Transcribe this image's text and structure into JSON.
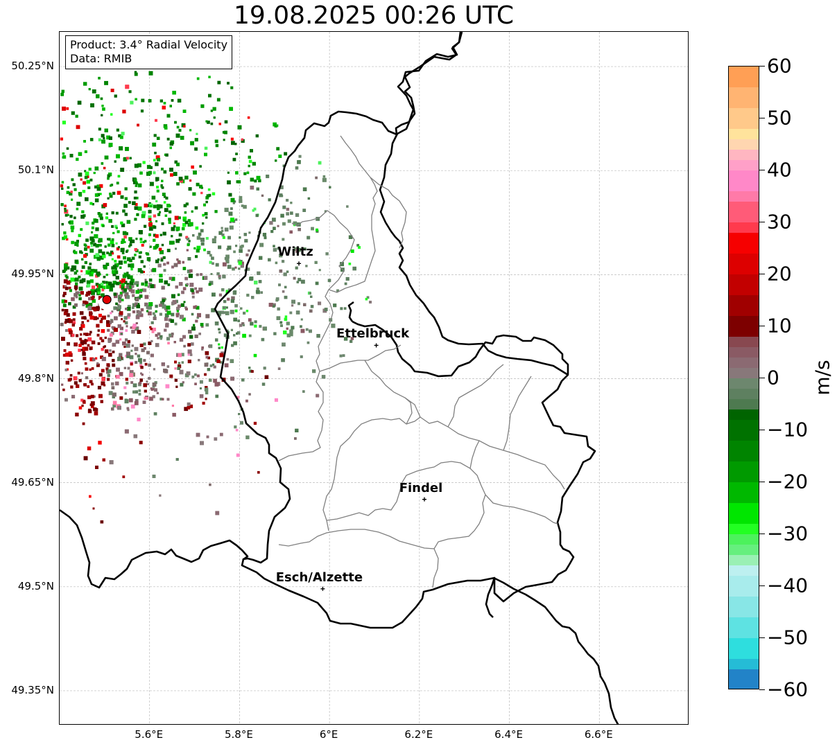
{
  "title": "19.08.2025 00:26 UTC",
  "info_box": {
    "product": "Product: 3.4° Radial Velocity",
    "data": "Data: RMIB"
  },
  "axes": {
    "lat_labels": [
      "50.25°N",
      "50.1°N",
      "49.95°N",
      "49.8°N",
      "49.65°N",
      "49.5°N",
      "49.35°N"
    ],
    "lat_values": [
      50.25,
      50.1,
      49.95,
      49.8,
      49.65,
      49.5,
      49.35
    ],
    "lon_labels": [
      "5.6°E",
      "5.8°E",
      "6°E",
      "6.2°E",
      "6.4°E",
      "6.6°E"
    ],
    "lon_values": [
      5.6,
      5.8,
      6.0,
      6.2,
      6.4,
      6.6
    ],
    "lon_range": [
      5.4,
      6.8
    ],
    "lat_range": [
      49.3,
      50.3
    ],
    "gridlines": true
  },
  "cities": [
    {
      "name": "Wiltz",
      "lon": 5.932,
      "lat": 49.966
    },
    {
      "name": "Ettelbruck",
      "lon": 6.104,
      "lat": 49.848
    },
    {
      "name": "Findel",
      "lon": 6.211,
      "lat": 49.626
    },
    {
      "name": "Esch/Alzette",
      "lon": 5.985,
      "lat": 49.497
    }
  ],
  "radar_site": {
    "lon": 5.505,
    "lat": 49.914,
    "color": "#e00000"
  },
  "colorbar": {
    "unit": "m/s",
    "min": -60,
    "max": 60,
    "ticks": [
      60,
      50,
      40,
      30,
      20,
      10,
      0,
      -10,
      -20,
      -30,
      -40,
      -50,
      -60
    ],
    "tick_labels": [
      "60",
      "50",
      "40",
      "30",
      "20",
      "10",
      "0",
      "−10",
      "−20",
      "−30",
      "−40",
      "−50",
      "−60"
    ],
    "segments": [
      {
        "from": 56,
        "to": 60,
        "color": "#ff9f55"
      },
      {
        "from": 52,
        "to": 56,
        "color": "#ffb472"
      },
      {
        "from": 48,
        "to": 52,
        "color": "#ffc98a"
      },
      {
        "from": 46,
        "to": 48,
        "color": "#ffe39c"
      },
      {
        "from": 44,
        "to": 46,
        "color": "#ffd6b0"
      },
      {
        "from": 42,
        "to": 44,
        "color": "#ffb6c1"
      },
      {
        "from": 40,
        "to": 42,
        "color": "#ffa0c8"
      },
      {
        "from": 36,
        "to": 40,
        "color": "#ff88c8"
      },
      {
        "from": 34,
        "to": 36,
        "color": "#ff7aa8"
      },
      {
        "from": 30,
        "to": 34,
        "color": "#ff5b78"
      },
      {
        "from": 28,
        "to": 30,
        "color": "#ff3a4d"
      },
      {
        "from": 24,
        "to": 28,
        "color": "#f60000"
      },
      {
        "from": 20,
        "to": 24,
        "color": "#dd0000"
      },
      {
        "from": 16,
        "to": 20,
        "color": "#c20000"
      },
      {
        "from": 12,
        "to": 16,
        "color": "#a00000"
      },
      {
        "from": 8,
        "to": 12,
        "color": "#7d0000"
      },
      {
        "from": 6,
        "to": 8,
        "color": "#884850"
      },
      {
        "from": 4,
        "to": 6,
        "color": "#8a5a64"
      },
      {
        "from": 2,
        "to": 4,
        "color": "#8b6a72"
      },
      {
        "from": 0,
        "to": 2,
        "color": "#88787a"
      },
      {
        "from": -2,
        "to": 0,
        "color": "#6d876e"
      },
      {
        "from": -4,
        "to": -2,
        "color": "#5e8060"
      },
      {
        "from": -6,
        "to": -4,
        "color": "#4e7a50"
      },
      {
        "from": -8,
        "to": -6,
        "color": "#006400"
      },
      {
        "from": -12,
        "to": -8,
        "color": "#007200"
      },
      {
        "from": -16,
        "to": -12,
        "color": "#008400"
      },
      {
        "from": -20,
        "to": -16,
        "color": "#009a00"
      },
      {
        "from": -24,
        "to": -20,
        "color": "#00b800"
      },
      {
        "from": -28,
        "to": -24,
        "color": "#00e600"
      },
      {
        "from": -30,
        "to": -28,
        "color": "#22ff22"
      },
      {
        "from": -32,
        "to": -30,
        "color": "#4cf25c"
      },
      {
        "from": -34,
        "to": -32,
        "color": "#66ef7e"
      },
      {
        "from": -36,
        "to": -34,
        "color": "#9af0b4"
      },
      {
        "from": -38,
        "to": -36,
        "color": "#bdf0f0"
      },
      {
        "from": -42,
        "to": -38,
        "color": "#a8ecec"
      },
      {
        "from": -46,
        "to": -42,
        "color": "#88e6e6"
      },
      {
        "from": -50,
        "to": -46,
        "color": "#5ee2e2"
      },
      {
        "from": -54,
        "to": -50,
        "color": "#2edede"
      },
      {
        "from": -56,
        "to": -54,
        "color": "#25bcd6"
      },
      {
        "from": -60,
        "to": -56,
        "color": "#2283c8"
      }
    ]
  }
}
